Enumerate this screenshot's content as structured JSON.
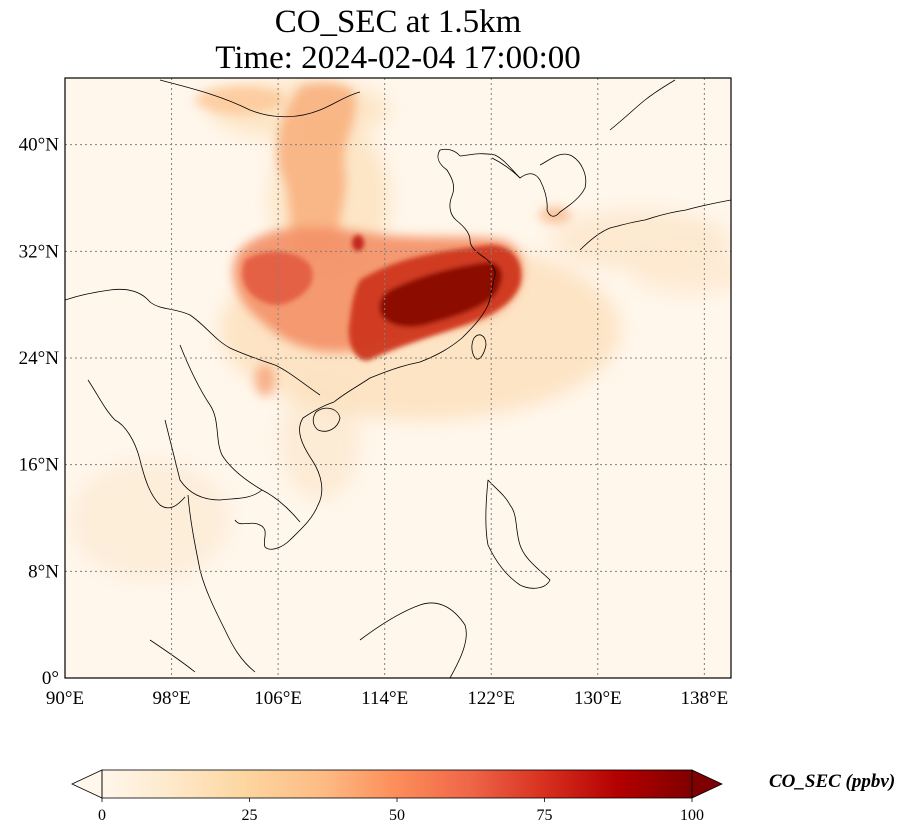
{
  "title": {
    "line1": "CO_SEC at 1.5km",
    "line2": "Time: 2024-02-04 17:00:00"
  },
  "map": {
    "projection": "PlateCarree",
    "extent": {
      "lon": [
        90,
        140
      ],
      "lat": [
        0,
        45
      ]
    },
    "gridlines": "dotted grey",
    "lon_ticks": [
      {
        "value": 90,
        "label": "90°E"
      },
      {
        "value": 98,
        "label": "98°E"
      },
      {
        "value": 106,
        "label": "106°E"
      },
      {
        "value": 114,
        "label": "114°E"
      },
      {
        "value": 122,
        "label": "122°E"
      },
      {
        "value": 130,
        "label": "130°E"
      },
      {
        "value": 138,
        "label": "138°E"
      }
    ],
    "lat_ticks": [
      {
        "value": 0,
        "label": "0°"
      },
      {
        "value": 8,
        "label": "8°N"
      },
      {
        "value": 16,
        "label": "16°N"
      },
      {
        "value": 24,
        "label": "24°N"
      },
      {
        "value": 32,
        "label": "32°N"
      },
      {
        "value": 40,
        "label": "40°N"
      }
    ]
  },
  "colorbar": {
    "label": "CO_SEC (ppbv)",
    "colormap": "OrRd",
    "extend": "both",
    "vmin": 0,
    "vmax": 100,
    "ticks": [
      {
        "value": 0,
        "label": "0"
      },
      {
        "value": 25,
        "label": "25"
      },
      {
        "value": 50,
        "label": "50"
      },
      {
        "value": 75,
        "label": "75"
      },
      {
        "value": 100,
        "label": "100"
      }
    ],
    "colors": [
      "#fff7ec",
      "#fee8c8",
      "#fdd49e",
      "#fdbb84",
      "#fc8d59",
      "#ef6548",
      "#d7301f",
      "#b30000",
      "#7f0000"
    ]
  }
}
